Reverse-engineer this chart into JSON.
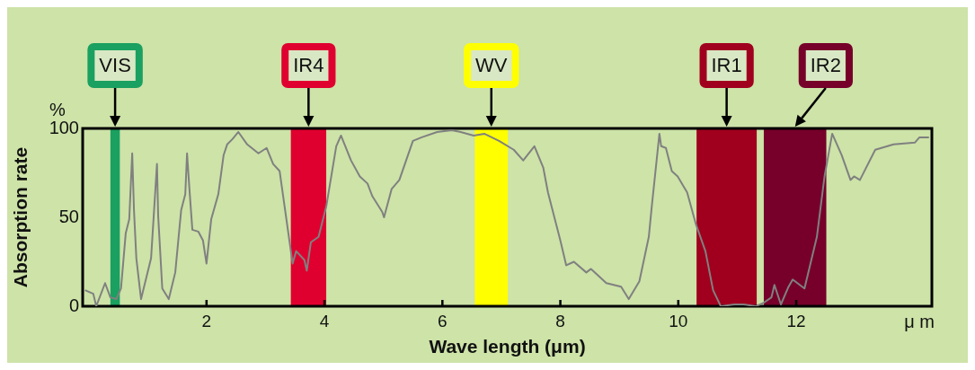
{
  "chart_data": {
    "type": "line",
    "xlabel": "Wave length (μm)",
    "ylabel": "Absorption rate",
    "annotations": [
      "%",
      "μ m"
    ],
    "x": [
      -0.06,
      0.08,
      0.13,
      0.28,
      0.37,
      0.47,
      0.55,
      0.63,
      0.69,
      0.74,
      0.77,
      0.81,
      0.89,
      1.06,
      1.16,
      1.18,
      1.25,
      1.36,
      1.47,
      1.57,
      1.64,
      1.67,
      1.71,
      1.76,
      1.86,
      1.94,
      2.0,
      2.08,
      2.2,
      2.29,
      2.35,
      2.44,
      2.54,
      2.69,
      2.88,
      3.02,
      3.13,
      3.24,
      3.46,
      3.52,
      3.66,
      3.7,
      3.77,
      3.9,
      4.03,
      4.2,
      4.28,
      4.45,
      4.6,
      4.73,
      4.81,
      4.98,
      5.01,
      5.14,
      5.27,
      5.5,
      5.65,
      5.91,
      6.16,
      6.31,
      6.53,
      6.71,
      6.96,
      7.21,
      7.37,
      7.56,
      7.71,
      7.79,
      8.0,
      8.1,
      8.23,
      8.44,
      8.52,
      8.78,
      9.03,
      9.16,
      9.34,
      9.5,
      9.55,
      9.68,
      9.71,
      9.79,
      9.89,
      9.99,
      10.15,
      10.3,
      10.46,
      10.59,
      10.72,
      10.95,
      11.11,
      11.32,
      11.45,
      11.58,
      11.63,
      11.74,
      11.87,
      11.94,
      12.14,
      12.35,
      12.48,
      12.61,
      12.77,
      12.92,
      12.98,
      13.08,
      13.34,
      13.65,
      14.01,
      14.09,
      14.25
    ],
    "series": [
      {
        "color": "#808080",
        "values": [
          9,
          7,
          0,
          13,
          5,
          4,
          10,
          41,
          49,
          86,
          54,
          27,
          4,
          27,
          80,
          51,
          10,
          4,
          19,
          54,
          63,
          86,
          66,
          43,
          42,
          37,
          24,
          49,
          63,
          85,
          91,
          94,
          98,
          91,
          86,
          89,
          80,
          76,
          24,
          31,
          26,
          20,
          36,
          39,
          56,
          90,
          96,
          82,
          73,
          69,
          62,
          53,
          50,
          66,
          71,
          93,
          95,
          98,
          99,
          98,
          96,
          97,
          93,
          88,
          82,
          90,
          78,
          64,
          37,
          23,
          25,
          19,
          21,
          13,
          11,
          4,
          14,
          39,
          56,
          97,
          90,
          89,
          76,
          73,
          64,
          46,
          31,
          9,
          0,
          1,
          1,
          0,
          2,
          5,
          12,
          1,
          11,
          15,
          10,
          39,
          73,
          97,
          85,
          71,
          73,
          71,
          88,
          91,
          92,
          95,
          95
        ]
      }
    ],
    "xlim": [
      -0.1,
      14.3
    ],
    "xticks": [
      2,
      4,
      6,
      8,
      10,
      12
    ],
    "ylim": [
      0,
      100
    ],
    "yticks": [
      0,
      50,
      100
    ],
    "grid": false,
    "legend": false,
    "marker": "none",
    "line_style": "solid",
    "bands": [
      {
        "axis": "x",
        "from": 0.37,
        "to": 0.53,
        "label": "VIS",
        "color": "#1aa060"
      },
      {
        "axis": "x",
        "from": 3.43,
        "to": 4.03,
        "label": "IR4",
        "color": "#e0002f"
      },
      {
        "axis": "x",
        "from": 6.55,
        "to": 7.11,
        "label": "WV",
        "color": "#ffff00"
      },
      {
        "axis": "x",
        "from": 10.31,
        "to": 11.33,
        "label": "IR1",
        "color": "#a0001e"
      },
      {
        "axis": "x",
        "from": 11.45,
        "to": 12.51,
        "label": "IR2",
        "color": "#76002a"
      }
    ]
  }
}
